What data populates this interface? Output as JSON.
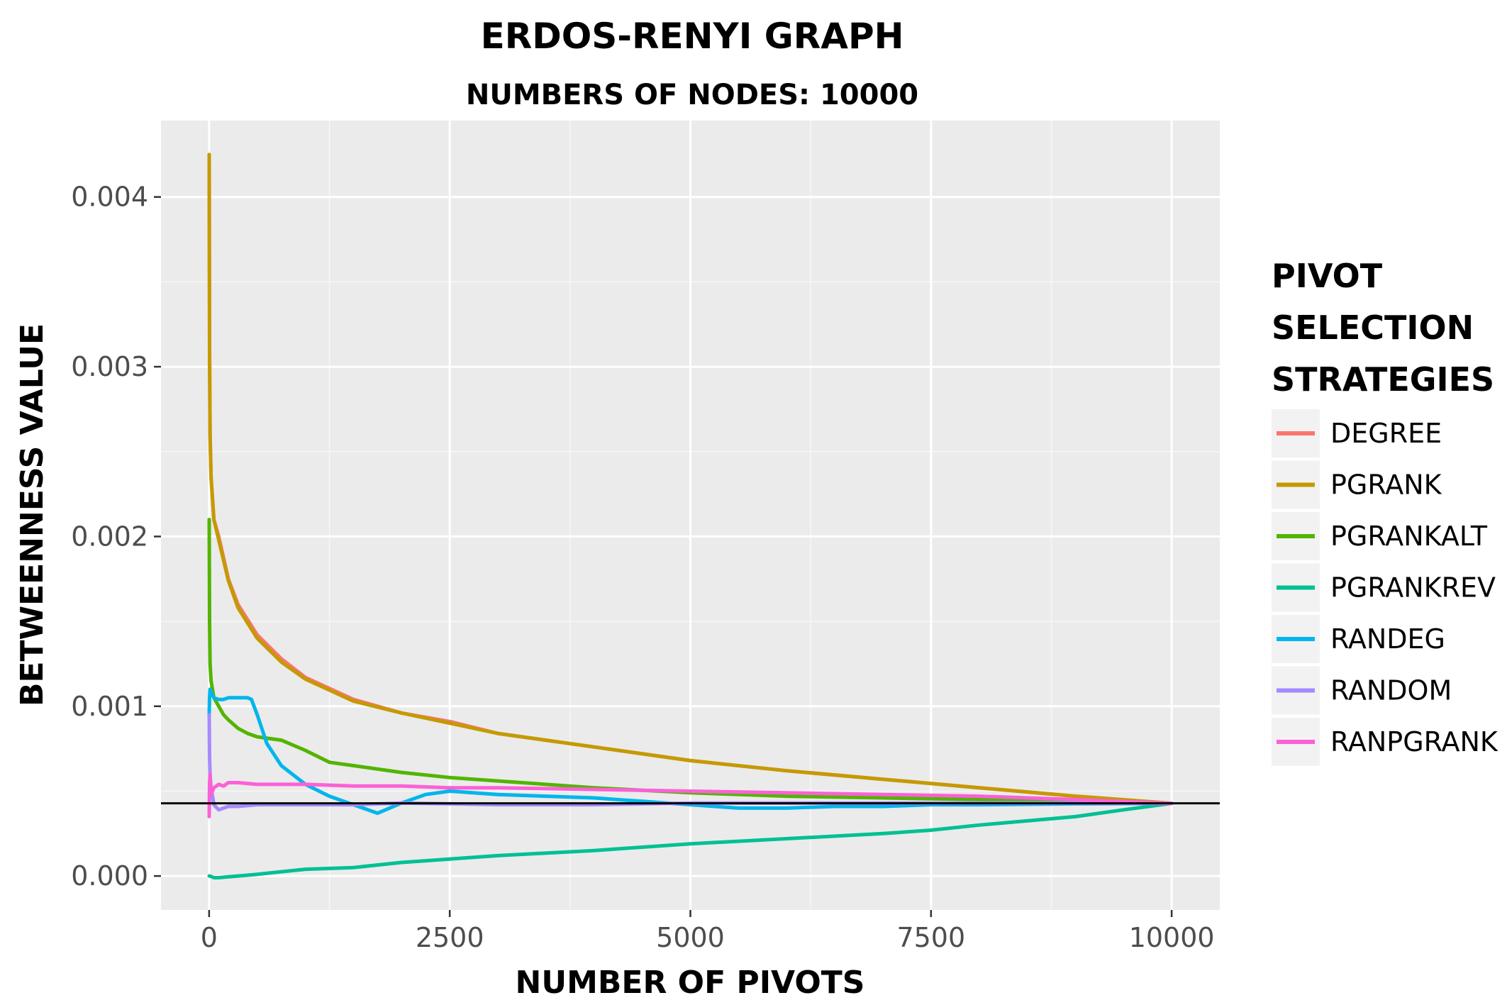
{
  "chart_data": {
    "type": "line",
    "title": "ERDOS-RENYI GRAPH",
    "subtitle": "NUMBERS OF NODES: 10000",
    "xlabel": "NUMBER OF PIVOTS",
    "ylabel": "BETWEENNESS VALUE",
    "xlim": [
      -500,
      10500
    ],
    "ylim": [
      -0.0002,
      0.00445
    ],
    "x_ticks": [
      0,
      2500,
      5000,
      7500,
      10000
    ],
    "x_tick_labels": [
      "0",
      "2500",
      "5000",
      "7500",
      "10000"
    ],
    "y_ticks": [
      0.0,
      0.001,
      0.002,
      0.003,
      0.004
    ],
    "y_tick_labels": [
      "0.000",
      "0.001",
      "0.002",
      "0.003",
      "0.004"
    ],
    "grid": true,
    "legend_position": "right",
    "legend_title": [
      "PIVOT",
      "SELECTION",
      "STRATEGIES"
    ],
    "reference_line": {
      "y": 0.000428,
      "color": "#000000"
    },
    "series": [
      {
        "name": "DEGREE",
        "color": "#F8766D",
        "x": [
          1,
          5,
          10,
          20,
          50,
          100,
          200,
          300,
          500,
          750,
          1000,
          1500,
          2000,
          2500,
          3000,
          4000,
          5000,
          6000,
          7000,
          8000,
          9000,
          10000
        ],
        "y": [
          0.00425,
          0.0031,
          0.0026,
          0.00235,
          0.0021,
          0.002,
          0.00175,
          0.0016,
          0.00142,
          0.00128,
          0.00117,
          0.00104,
          0.00096,
          0.00091,
          0.00084,
          0.00076,
          0.00068,
          0.00062,
          0.00057,
          0.00052,
          0.00047,
          0.000428
        ]
      },
      {
        "name": "PGRANK",
        "color": "#C49A00",
        "x": [
          1,
          5,
          10,
          20,
          50,
          100,
          200,
          300,
          500,
          750,
          1000,
          1500,
          2000,
          2500,
          3000,
          4000,
          5000,
          6000,
          7000,
          8000,
          9000,
          10000
        ],
        "y": [
          0.00425,
          0.0031,
          0.0026,
          0.00235,
          0.0021,
          0.00198,
          0.00174,
          0.00158,
          0.0014,
          0.00126,
          0.00116,
          0.00103,
          0.00096,
          0.0009,
          0.00084,
          0.00076,
          0.00068,
          0.00062,
          0.00057,
          0.00052,
          0.00047,
          0.000428
        ]
      },
      {
        "name": "PGRANKALT",
        "color": "#53B400",
        "x": [
          1,
          5,
          10,
          20,
          50,
          100,
          150,
          200,
          300,
          400,
          500,
          750,
          1000,
          1250,
          1500,
          2000,
          2500,
          3000,
          4000,
          5000,
          6000,
          7000,
          8000,
          9000,
          10000
        ],
        "y": [
          0.0021,
          0.0015,
          0.00125,
          0.00115,
          0.00105,
          0.001,
          0.00095,
          0.00092,
          0.00087,
          0.00084,
          0.00082,
          0.0008,
          0.00074,
          0.00067,
          0.00065,
          0.00061,
          0.00058,
          0.00056,
          0.00052,
          0.00049,
          0.00047,
          0.00046,
          0.00045,
          0.00044,
          0.000428
        ]
      },
      {
        "name": "PGRANKREV",
        "color": "#00C094",
        "x": [
          1,
          5,
          10,
          50,
          100,
          200,
          300,
          500,
          1000,
          1500,
          2000,
          2500,
          3000,
          4000,
          5000,
          6000,
          7000,
          7500,
          8000,
          9000,
          9500,
          10000
        ],
        "y": [
          0.0,
          0.0,
          0.0,
          -1e-05,
          -1e-05,
          -5e-06,
          0.0,
          1e-05,
          4e-05,
          5e-05,
          8e-05,
          0.0001,
          0.00012,
          0.00015,
          0.00019,
          0.00022,
          0.00025,
          0.00027,
          0.0003,
          0.00035,
          0.00039,
          0.000428
        ]
      },
      {
        "name": "RANDEG",
        "color": "#00B6EB",
        "x": [
          1,
          5,
          10,
          20,
          50,
          100,
          150,
          200,
          300,
          400,
          440,
          500,
          600,
          750,
          1000,
          1250,
          1500,
          1750,
          2000,
          2250,
          2500,
          3000,
          3500,
          4000,
          4500,
          5000,
          5500,
          6000,
          6500,
          7000,
          7500,
          8000,
          9000,
          10000
        ],
        "y": [
          0.00095,
          0.00105,
          0.0011,
          0.00108,
          0.00105,
          0.00104,
          0.00104,
          0.00105,
          0.00105,
          0.00105,
          0.00104,
          0.00095,
          0.00078,
          0.00065,
          0.00054,
          0.00047,
          0.00042,
          0.00037,
          0.00043,
          0.00048,
          0.0005,
          0.00048,
          0.00047,
          0.00046,
          0.00044,
          0.00042,
          0.0004,
          0.0004,
          0.00041,
          0.00041,
          0.00042,
          0.00042,
          0.000425,
          0.000428
        ]
      },
      {
        "name": "RANDOM",
        "color": "#A58AFF",
        "x": [
          1,
          5,
          10,
          20,
          50,
          100,
          150,
          200,
          300,
          500,
          1000,
          1500,
          2000,
          3000,
          4000,
          5000,
          6000,
          7000,
          8000,
          9000,
          10000
        ],
        "y": [
          0.00095,
          0.0007,
          0.0006,
          0.00052,
          0.00042,
          0.00039,
          0.0004,
          0.00041,
          0.00041,
          0.00042,
          0.00042,
          0.00042,
          0.00043,
          0.00042,
          0.00042,
          0.00043,
          0.00043,
          0.00043,
          0.00043,
          0.00043,
          0.000428
        ]
      },
      {
        "name": "RANPGRANK",
        "color": "#FB61D7",
        "x": [
          1,
          5,
          10,
          20,
          50,
          100,
          150,
          200,
          300,
          500,
          750,
          1000,
          1500,
          2000,
          2500,
          3000,
          4000,
          5000,
          6000,
          7000,
          8000,
          9000,
          10000
        ],
        "y": [
          0.00035,
          0.00055,
          0.0006,
          0.00048,
          0.00052,
          0.00054,
          0.00053,
          0.00055,
          0.00055,
          0.00054,
          0.00054,
          0.00054,
          0.00053,
          0.00053,
          0.00052,
          0.00052,
          0.00051,
          0.0005,
          0.00049,
          0.00048,
          0.00047,
          0.00045,
          0.000428
        ]
      }
    ]
  }
}
